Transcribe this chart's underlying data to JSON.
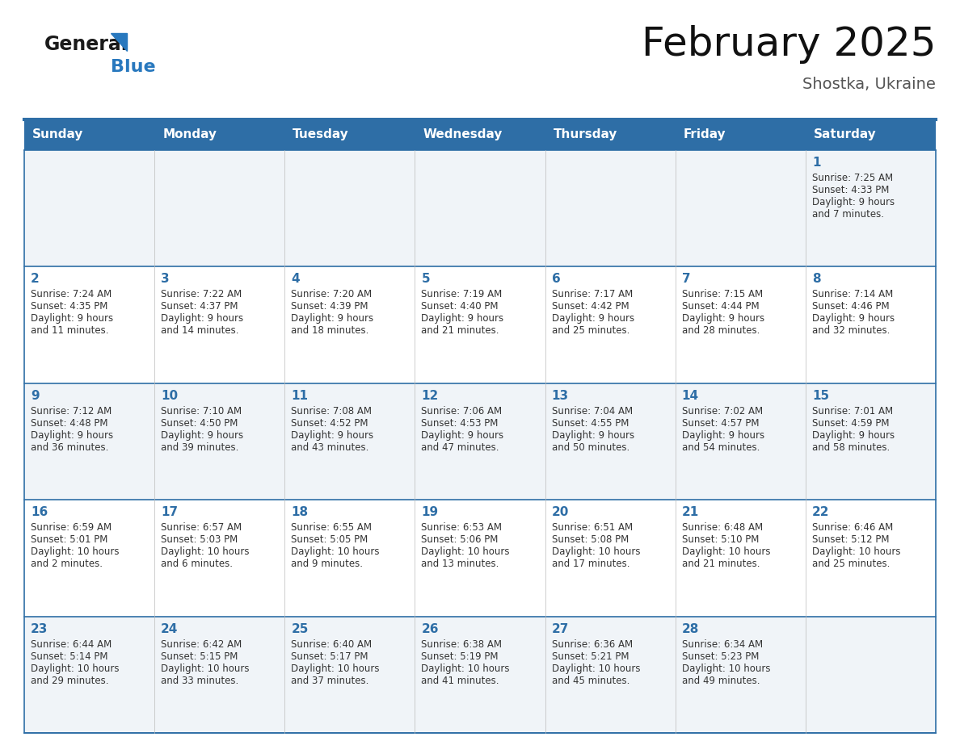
{
  "title": "February 2025",
  "subtitle": "Shostka, Ukraine",
  "header_color": "#2E6EA6",
  "header_text_color": "#FFFFFF",
  "weekdays": [
    "Sunday",
    "Monday",
    "Tuesday",
    "Wednesday",
    "Thursday",
    "Friday",
    "Saturday"
  ],
  "background_color": "#FFFFFF",
  "cell_bg_even": "#F0F4F8",
  "cell_bg_odd": "#FFFFFF",
  "line_color": "#2E6EA6",
  "day_number_color": "#2E6EA6",
  "text_color": "#333333",
  "logo_general_color": "#1A1A1A",
  "logo_blue_color": "#2878BE",
  "days": [
    {
      "day": 1,
      "col": 6,
      "row": 0,
      "sunrise": "7:25 AM",
      "sunset": "4:33 PM",
      "daylight_line1": "Daylight: 9 hours",
      "daylight_line2": "and 7 minutes."
    },
    {
      "day": 2,
      "col": 0,
      "row": 1,
      "sunrise": "7:24 AM",
      "sunset": "4:35 PM",
      "daylight_line1": "Daylight: 9 hours",
      "daylight_line2": "and 11 minutes."
    },
    {
      "day": 3,
      "col": 1,
      "row": 1,
      "sunrise": "7:22 AM",
      "sunset": "4:37 PM",
      "daylight_line1": "Daylight: 9 hours",
      "daylight_line2": "and 14 minutes."
    },
    {
      "day": 4,
      "col": 2,
      "row": 1,
      "sunrise": "7:20 AM",
      "sunset": "4:39 PM",
      "daylight_line1": "Daylight: 9 hours",
      "daylight_line2": "and 18 minutes."
    },
    {
      "day": 5,
      "col": 3,
      "row": 1,
      "sunrise": "7:19 AM",
      "sunset": "4:40 PM",
      "daylight_line1": "Daylight: 9 hours",
      "daylight_line2": "and 21 minutes."
    },
    {
      "day": 6,
      "col": 4,
      "row": 1,
      "sunrise": "7:17 AM",
      "sunset": "4:42 PM",
      "daylight_line1": "Daylight: 9 hours",
      "daylight_line2": "and 25 minutes."
    },
    {
      "day": 7,
      "col": 5,
      "row": 1,
      "sunrise": "7:15 AM",
      "sunset": "4:44 PM",
      "daylight_line1": "Daylight: 9 hours",
      "daylight_line2": "and 28 minutes."
    },
    {
      "day": 8,
      "col": 6,
      "row": 1,
      "sunrise": "7:14 AM",
      "sunset": "4:46 PM",
      "daylight_line1": "Daylight: 9 hours",
      "daylight_line2": "and 32 minutes."
    },
    {
      "day": 9,
      "col": 0,
      "row": 2,
      "sunrise": "7:12 AM",
      "sunset": "4:48 PM",
      "daylight_line1": "Daylight: 9 hours",
      "daylight_line2": "and 36 minutes."
    },
    {
      "day": 10,
      "col": 1,
      "row": 2,
      "sunrise": "7:10 AM",
      "sunset": "4:50 PM",
      "daylight_line1": "Daylight: 9 hours",
      "daylight_line2": "and 39 minutes."
    },
    {
      "day": 11,
      "col": 2,
      "row": 2,
      "sunrise": "7:08 AM",
      "sunset": "4:52 PM",
      "daylight_line1": "Daylight: 9 hours",
      "daylight_line2": "and 43 minutes."
    },
    {
      "day": 12,
      "col": 3,
      "row": 2,
      "sunrise": "7:06 AM",
      "sunset": "4:53 PM",
      "daylight_line1": "Daylight: 9 hours",
      "daylight_line2": "and 47 minutes."
    },
    {
      "day": 13,
      "col": 4,
      "row": 2,
      "sunrise": "7:04 AM",
      "sunset": "4:55 PM",
      "daylight_line1": "Daylight: 9 hours",
      "daylight_line2": "and 50 minutes."
    },
    {
      "day": 14,
      "col": 5,
      "row": 2,
      "sunrise": "7:02 AM",
      "sunset": "4:57 PM",
      "daylight_line1": "Daylight: 9 hours",
      "daylight_line2": "and 54 minutes."
    },
    {
      "day": 15,
      "col": 6,
      "row": 2,
      "sunrise": "7:01 AM",
      "sunset": "4:59 PM",
      "daylight_line1": "Daylight: 9 hours",
      "daylight_line2": "and 58 minutes."
    },
    {
      "day": 16,
      "col": 0,
      "row": 3,
      "sunrise": "6:59 AM",
      "sunset": "5:01 PM",
      "daylight_line1": "Daylight: 10 hours",
      "daylight_line2": "and 2 minutes."
    },
    {
      "day": 17,
      "col": 1,
      "row": 3,
      "sunrise": "6:57 AM",
      "sunset": "5:03 PM",
      "daylight_line1": "Daylight: 10 hours",
      "daylight_line2": "and 6 minutes."
    },
    {
      "day": 18,
      "col": 2,
      "row": 3,
      "sunrise": "6:55 AM",
      "sunset": "5:05 PM",
      "daylight_line1": "Daylight: 10 hours",
      "daylight_line2": "and 9 minutes."
    },
    {
      "day": 19,
      "col": 3,
      "row": 3,
      "sunrise": "6:53 AM",
      "sunset": "5:06 PM",
      "daylight_line1": "Daylight: 10 hours",
      "daylight_line2": "and 13 minutes."
    },
    {
      "day": 20,
      "col": 4,
      "row": 3,
      "sunrise": "6:51 AM",
      "sunset": "5:08 PM",
      "daylight_line1": "Daylight: 10 hours",
      "daylight_line2": "and 17 minutes."
    },
    {
      "day": 21,
      "col": 5,
      "row": 3,
      "sunrise": "6:48 AM",
      "sunset": "5:10 PM",
      "daylight_line1": "Daylight: 10 hours",
      "daylight_line2": "and 21 minutes."
    },
    {
      "day": 22,
      "col": 6,
      "row": 3,
      "sunrise": "6:46 AM",
      "sunset": "5:12 PM",
      "daylight_line1": "Daylight: 10 hours",
      "daylight_line2": "and 25 minutes."
    },
    {
      "day": 23,
      "col": 0,
      "row": 4,
      "sunrise": "6:44 AM",
      "sunset": "5:14 PM",
      "daylight_line1": "Daylight: 10 hours",
      "daylight_line2": "and 29 minutes."
    },
    {
      "day": 24,
      "col": 1,
      "row": 4,
      "sunrise": "6:42 AM",
      "sunset": "5:15 PM",
      "daylight_line1": "Daylight: 10 hours",
      "daylight_line2": "and 33 minutes."
    },
    {
      "day": 25,
      "col": 2,
      "row": 4,
      "sunrise": "6:40 AM",
      "sunset": "5:17 PM",
      "daylight_line1": "Daylight: 10 hours",
      "daylight_line2": "and 37 minutes."
    },
    {
      "day": 26,
      "col": 3,
      "row": 4,
      "sunrise": "6:38 AM",
      "sunset": "5:19 PM",
      "daylight_line1": "Daylight: 10 hours",
      "daylight_line2": "and 41 minutes."
    },
    {
      "day": 27,
      "col": 4,
      "row": 4,
      "sunrise": "6:36 AM",
      "sunset": "5:21 PM",
      "daylight_line1": "Daylight: 10 hours",
      "daylight_line2": "and 45 minutes."
    },
    {
      "day": 28,
      "col": 5,
      "row": 4,
      "sunrise": "6:34 AM",
      "sunset": "5:23 PM",
      "daylight_line1": "Daylight: 10 hours",
      "daylight_line2": "and 49 minutes."
    }
  ],
  "num_rows": 5,
  "num_cols": 7,
  "title_fontsize": 36,
  "subtitle_fontsize": 14,
  "header_fontsize": 11,
  "day_num_fontsize": 11,
  "cell_text_fontsize": 8.5
}
